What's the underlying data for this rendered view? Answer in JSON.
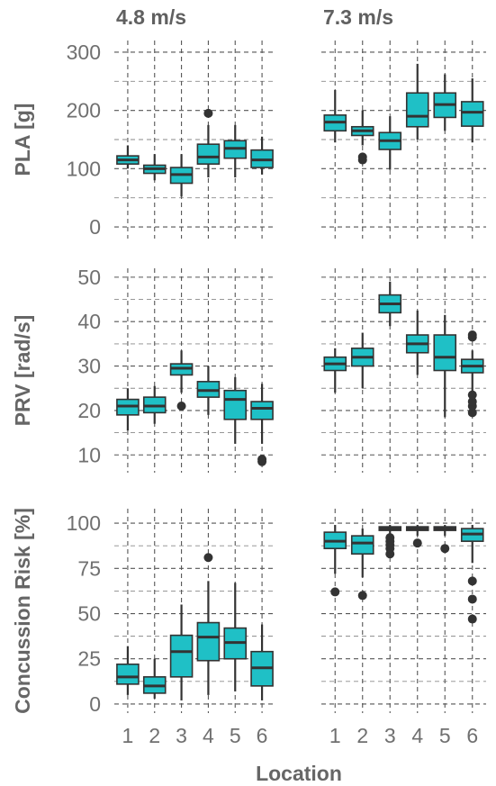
{
  "chart_data": {
    "type": "boxplot",
    "xlabel": "Location",
    "x_categories": [
      "1",
      "2",
      "3",
      "4",
      "5",
      "6"
    ],
    "box_color": "#1fc0c6",
    "line_color": "#333333",
    "grid": true,
    "columns": [
      "4.8 m/s",
      "7.3 m/s"
    ],
    "rows": [
      {
        "ylabel": "PLA [g]",
        "ylim": [
          -20,
          320
        ],
        "yticks": [
          "0",
          "100",
          "200",
          "300"
        ],
        "ytick_values": [
          0,
          100,
          200,
          300
        ],
        "panels": [
          {
            "column": "4.8 m/s",
            "boxes": [
              {
                "x": "1",
                "whislo": 100,
                "q1": 108,
                "med": 115,
                "q3": 122,
                "whishi": 140,
                "fliers": []
              },
              {
                "x": "2",
                "whislo": 80,
                "q1": 92,
                "med": 100,
                "q3": 106,
                "whishi": 125,
                "fliers": []
              },
              {
                "x": "3",
                "whislo": 52,
                "q1": 75,
                "med": 90,
                "q3": 102,
                "whishi": 125,
                "fliers": []
              },
              {
                "x": "4",
                "whislo": 85,
                "q1": 108,
                "med": 120,
                "q3": 142,
                "whishi": 175,
                "fliers": [
                  195
                ]
              },
              {
                "x": "5",
                "whislo": 85,
                "q1": 118,
                "med": 135,
                "q3": 148,
                "whishi": 175,
                "fliers": []
              },
              {
                "x": "6",
                "whislo": 90,
                "q1": 102,
                "med": 115,
                "q3": 132,
                "whishi": 155,
                "fliers": []
              }
            ]
          },
          {
            "column": "7.3 m/s",
            "boxes": [
              {
                "x": "1",
                "whislo": 145,
                "q1": 165,
                "med": 180,
                "q3": 192,
                "whishi": 235,
                "fliers": []
              },
              {
                "x": "2",
                "whislo": 140,
                "q1": 157,
                "med": 165,
                "q3": 172,
                "whishi": 200,
                "fliers": [
                  115,
                  120
                ]
              },
              {
                "x": "3",
                "whislo": 98,
                "q1": 133,
                "med": 148,
                "q3": 162,
                "whishi": 190,
                "fliers": []
              },
              {
                "x": "4",
                "whislo": 150,
                "q1": 172,
                "med": 190,
                "q3": 230,
                "whishi": 280,
                "fliers": []
              },
              {
                "x": "5",
                "whislo": 165,
                "q1": 188,
                "med": 210,
                "q3": 230,
                "whishi": 262,
                "fliers": []
              },
              {
                "x": "6",
                "whislo": 145,
                "q1": 173,
                "med": 197,
                "q3": 215,
                "whishi": 255,
                "fliers": []
              }
            ]
          }
        ]
      },
      {
        "ylabel": "PRV [rad/s]",
        "ylim": [
          6,
          52
        ],
        "yticks": [
          "10",
          "20",
          "30",
          "40",
          "50"
        ],
        "ytick_values": [
          10,
          20,
          30,
          40,
          50
        ],
        "panels": [
          {
            "column": "4.8 m/s",
            "boxes": [
              {
                "x": "1",
                "whislo": 15.5,
                "q1": 19,
                "med": 21,
                "q3": 22.5,
                "whishi": 25,
                "fliers": []
              },
              {
                "x": "2",
                "whislo": 17,
                "q1": 19.5,
                "med": 21,
                "q3": 23,
                "whishi": 25.5,
                "fliers": []
              },
              {
                "x": "3",
                "whislo": 24,
                "q1": 28,
                "med": 29.5,
                "q3": 30.5,
                "whishi": 33.5,
                "fliers": [
                  21
                ]
              },
              {
                "x": "4",
                "whislo": 19,
                "q1": 23,
                "med": 24.5,
                "q3": 26.5,
                "whishi": 30,
                "fliers": []
              },
              {
                "x": "5",
                "whislo": 12.5,
                "q1": 18,
                "med": 22.5,
                "q3": 24.5,
                "whishi": 27.5,
                "fliers": []
              },
              {
                "x": "6",
                "whislo": 12.5,
                "q1": 18,
                "med": 20.5,
                "q3": 22,
                "whishi": 26,
                "fliers": [
                  8.5,
                  9
                ]
              }
            ]
          },
          {
            "column": "7.3 m/s",
            "boxes": [
              {
                "x": "1",
                "whislo": 24,
                "q1": 29,
                "med": 30.5,
                "q3": 32,
                "whishi": 34,
                "fliers": []
              },
              {
                "x": "2",
                "whislo": 25,
                "q1": 30,
                "med": 32,
                "q3": 34,
                "whishi": 37.5,
                "fliers": []
              },
              {
                "x": "3",
                "whislo": 39,
                "q1": 42,
                "med": 44,
                "q3": 46,
                "whishi": 49,
                "fliers": []
              },
              {
                "x": "4",
                "whislo": 28,
                "q1": 33,
                "med": 35,
                "q3": 37,
                "whishi": 42.5,
                "fliers": []
              },
              {
                "x": "5",
                "whislo": 18.5,
                "q1": 29,
                "med": 32,
                "q3": 37,
                "whishi": 41.5,
                "fliers": []
              },
              {
                "x": "6",
                "whislo": 23,
                "q1": 28.5,
                "med": 30,
                "q3": 31.5,
                "whishi": 33.5,
                "fliers": [
                  19.5,
                  21,
                  22,
                  23.5,
                  36.5,
                  37
                ]
              }
            ]
          }
        ]
      },
      {
        "ylabel": "Concussion Risk [%]",
        "ylim": [
          -5,
          108
        ],
        "yticks": [
          "0",
          "25",
          "50",
          "75",
          "100"
        ],
        "ytick_values": [
          0,
          25,
          50,
          75,
          100
        ],
        "panels": [
          {
            "column": "4.8 m/s",
            "boxes": [
              {
                "x": "1",
                "whislo": 5,
                "q1": 11,
                "med": 15,
                "q3": 22,
                "whishi": 32,
                "fliers": []
              },
              {
                "x": "2",
                "whislo": 3,
                "q1": 6,
                "med": 10,
                "q3": 15,
                "whishi": 25,
                "fliers": []
              },
              {
                "x": "3",
                "whislo": 2,
                "q1": 15,
                "med": 29,
                "q3": 38,
                "whishi": 55,
                "fliers": []
              },
              {
                "x": "4",
                "whislo": 5,
                "q1": 24,
                "med": 37,
                "q3": 45,
                "whishi": 68,
                "fliers": [
                  81
                ]
              },
              {
                "x": "5",
                "whislo": 7,
                "q1": 25,
                "med": 34,
                "q3": 42,
                "whishi": 67,
                "fliers": []
              },
              {
                "x": "6",
                "whislo": 2,
                "q1": 10,
                "med": 20,
                "q3": 29,
                "whishi": 44,
                "fliers": []
              }
            ]
          },
          {
            "column": "7.3 m/s",
            "boxes": [
              {
                "x": "1",
                "whislo": 72,
                "q1": 86,
                "med": 90,
                "q3": 95,
                "whishi": 99,
                "fliers": [
                  62
                ]
              },
              {
                "x": "2",
                "whislo": 70,
                "q1": 83,
                "med": 89,
                "q3": 93,
                "whishi": 97,
                "fliers": [
                  60
                ]
              },
              {
                "x": "3",
                "whislo": 93,
                "q1": 96,
                "med": 97,
                "q3": 98,
                "whishi": 99,
                "fliers": [
                  83,
                  86,
                  88,
                  90,
                  92
                ]
              },
              {
                "x": "4",
                "whislo": 93,
                "q1": 96,
                "med": 97,
                "q3": 98,
                "whishi": 99,
                "fliers": [
                  89
                ]
              },
              {
                "x": "5",
                "whislo": 93,
                "q1": 96,
                "med": 97,
                "q3": 98,
                "whishi": 99,
                "fliers": [
                  86
                ]
              },
              {
                "x": "6",
                "whislo": 78,
                "q1": 90,
                "med": 94,
                "q3": 97,
                "whishi": 99,
                "fliers": [
                  47,
                  58,
                  68
                ]
              }
            ]
          }
        ]
      }
    ]
  }
}
